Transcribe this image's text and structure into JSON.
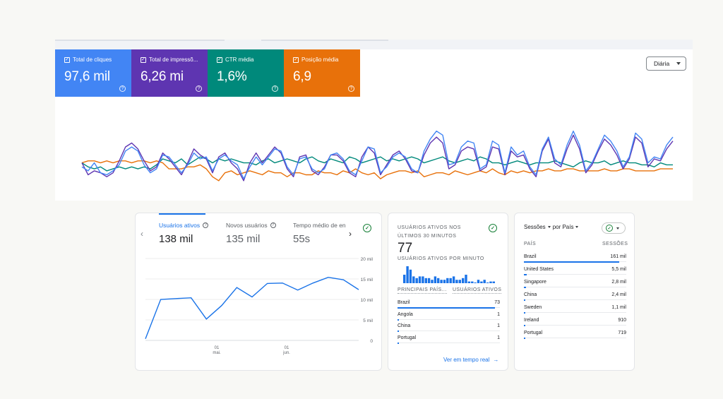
{
  "search_console": {
    "metrics": [
      {
        "label": "Total de cliques",
        "value": "97,6 mil",
        "color": "#4285f4"
      },
      {
        "label": "Total de impressõ...",
        "value": "6,26 mi",
        "color": "#5e35b1"
      },
      {
        "label": "CTR média",
        "value": "1,6%",
        "color": "#00897b"
      },
      {
        "label": "Posição média",
        "value": "6,9",
        "color": "#e8710a"
      }
    ],
    "period_label": "Diária",
    "series": {
      "clicks": [
        12,
        10,
        14,
        9,
        8,
        10,
        13,
        20,
        22,
        20,
        13,
        9,
        11,
        18,
        17,
        13,
        9,
        13,
        19,
        16,
        17,
        10,
        16,
        18,
        15,
        13,
        6,
        12,
        17,
        13,
        17,
        21,
        20,
        12,
        8,
        16,
        17,
        11,
        9,
        11,
        18,
        19,
        16,
        10,
        8,
        15,
        22,
        21,
        9,
        12,
        17,
        19,
        17,
        11,
        9,
        20,
        26,
        30,
        28,
        13,
        14,
        22,
        25,
        24,
        11,
        13,
        25,
        23,
        9,
        22,
        18,
        20,
        12,
        8,
        21,
        27,
        16,
        13,
        23,
        30,
        23,
        10,
        14,
        21,
        28,
        25,
        20,
        12,
        17,
        29,
        26,
        14,
        17,
        16,
        23,
        27
      ],
      "impressions": [
        14,
        8,
        10,
        9,
        7,
        9,
        15,
        22,
        24,
        21,
        15,
        10,
        12,
        19,
        16,
        12,
        8,
        14,
        21,
        18,
        16,
        9,
        17,
        19,
        14,
        11,
        5,
        14,
        19,
        14,
        18,
        22,
        19,
        11,
        7,
        17,
        18,
        10,
        8,
        12,
        18,
        18,
        15,
        9,
        7,
        17,
        22,
        19,
        8,
        13,
        18,
        20,
        16,
        10,
        9,
        18,
        24,
        27,
        24,
        11,
        13,
        20,
        22,
        21,
        10,
        12,
        22,
        21,
        8,
        20,
        17,
        18,
        11,
        7,
        20,
        26,
        14,
        12,
        21,
        28,
        21,
        9,
        13,
        20,
        26,
        23,
        18,
        11,
        16,
        27,
        24,
        12,
        16,
        15,
        21,
        25
      ],
      "ctr": [
        14,
        12,
        11,
        12,
        10,
        11,
        12,
        11,
        12,
        11,
        12,
        11,
        13,
        16,
        15,
        14,
        16,
        13,
        15,
        17,
        16,
        14,
        16,
        15,
        16,
        15,
        14,
        14,
        13,
        15,
        16,
        14,
        15,
        16,
        15,
        14,
        16,
        17,
        15,
        14,
        16,
        15,
        14,
        17,
        16,
        14,
        15,
        16,
        17,
        15,
        16,
        15,
        16,
        17,
        16,
        14,
        15,
        16,
        17,
        15,
        14,
        15,
        16,
        15,
        17,
        16,
        14,
        14,
        13,
        14,
        15,
        14,
        13,
        14,
        14,
        14,
        15,
        14,
        13,
        12,
        14,
        15,
        14,
        14,
        15,
        13,
        14,
        15,
        14,
        14,
        13,
        13,
        12,
        14,
        13,
        13
      ],
      "position": [
        14,
        15,
        15,
        14,
        15,
        14,
        15,
        15,
        14,
        15,
        15,
        14,
        15,
        14,
        11,
        11,
        11,
        12,
        12,
        13,
        11,
        7,
        5,
        9,
        10,
        8,
        9,
        10,
        9,
        8,
        10,
        9,
        9,
        7,
        9,
        9,
        8,
        8,
        10,
        9,
        9,
        8,
        10,
        9,
        11,
        9,
        8,
        9,
        6,
        8,
        9,
        10,
        10,
        9,
        10,
        7,
        8,
        9,
        9,
        8,
        10,
        9,
        8,
        9,
        10,
        9,
        11,
        9,
        8,
        10,
        9,
        10,
        9,
        10,
        10,
        11,
        10,
        10,
        11,
        11,
        10,
        10,
        10,
        10,
        11,
        10,
        10,
        11,
        11,
        10,
        10,
        10,
        10,
        11,
        11,
        11
      ]
    }
  },
  "ga_realtime_overview": {
    "tabs": [
      {
        "label": "Usuários ativos",
        "value": "138 mil"
      },
      {
        "label": "Novos usuários",
        "value": "135 mil"
      },
      {
        "label": "Tempo médio de en",
        "value": "55s"
      }
    ],
    "y_ticks": [
      "20 mil",
      "15 mil",
      "10 mil",
      "5 mil",
      "0"
    ],
    "x_ticks": [
      {
        "day": "01",
        "month": "mai."
      },
      {
        "day": "01",
        "month": "jun."
      }
    ],
    "line_values": [
      400,
      10000,
      10200,
      10400,
      5200,
      8500,
      12900,
      10600,
      13900,
      14000,
      12300,
      14000,
      15400,
      14800,
      12400
    ]
  },
  "realtime_card": {
    "title": "USUÁRIOS ATIVOS NOS ÚLTIMOS 30 MINUTOS",
    "active_users": "77",
    "per_minute_label": "USUÁRIOS ATIVOS POR MINUTO",
    "per_minute_values": [
      5,
      10,
      8,
      4,
      3,
      4,
      4,
      3,
      3,
      2,
      4,
      3,
      2,
      2,
      3,
      3,
      4,
      2,
      2,
      3,
      5,
      1,
      1,
      0,
      2,
      1,
      2,
      0,
      1,
      1
    ],
    "col_country": "PRINCIPAIS PAÍS...",
    "col_users": "USUÁRIOS ATIVOS",
    "rows": [
      {
        "country": "Brazil",
        "value": "73",
        "share": 0.95
      },
      {
        "country": "Angola",
        "value": "1",
        "share": 0.01
      },
      {
        "country": "China",
        "value": "1",
        "share": 0.01
      },
      {
        "country": "Portugal",
        "value": "1",
        "share": 0.01
      }
    ],
    "realtime_link": "Ver em tempo real"
  },
  "country_card": {
    "metric_label": "Sessões",
    "by_label": "por País",
    "col_country": "PAÍS",
    "col_sessions": "SESSÕES",
    "rows": [
      {
        "country": "Brazil",
        "value": "161 mil",
        "share": 0.93
      },
      {
        "country": "United States",
        "value": "5,5 mil",
        "share": 0.03
      },
      {
        "country": "Singapore",
        "value": "2,8 mil",
        "share": 0.02
      },
      {
        "country": "China",
        "value": "2,4 mil",
        "share": 0.01
      },
      {
        "country": "Sweden",
        "value": "1,1 mil",
        "share": 0.01
      },
      {
        "country": "Ireland",
        "value": "910",
        "share": 0.005
      },
      {
        "country": "Portugal",
        "value": "719",
        "share": 0.004
      }
    ]
  }
}
